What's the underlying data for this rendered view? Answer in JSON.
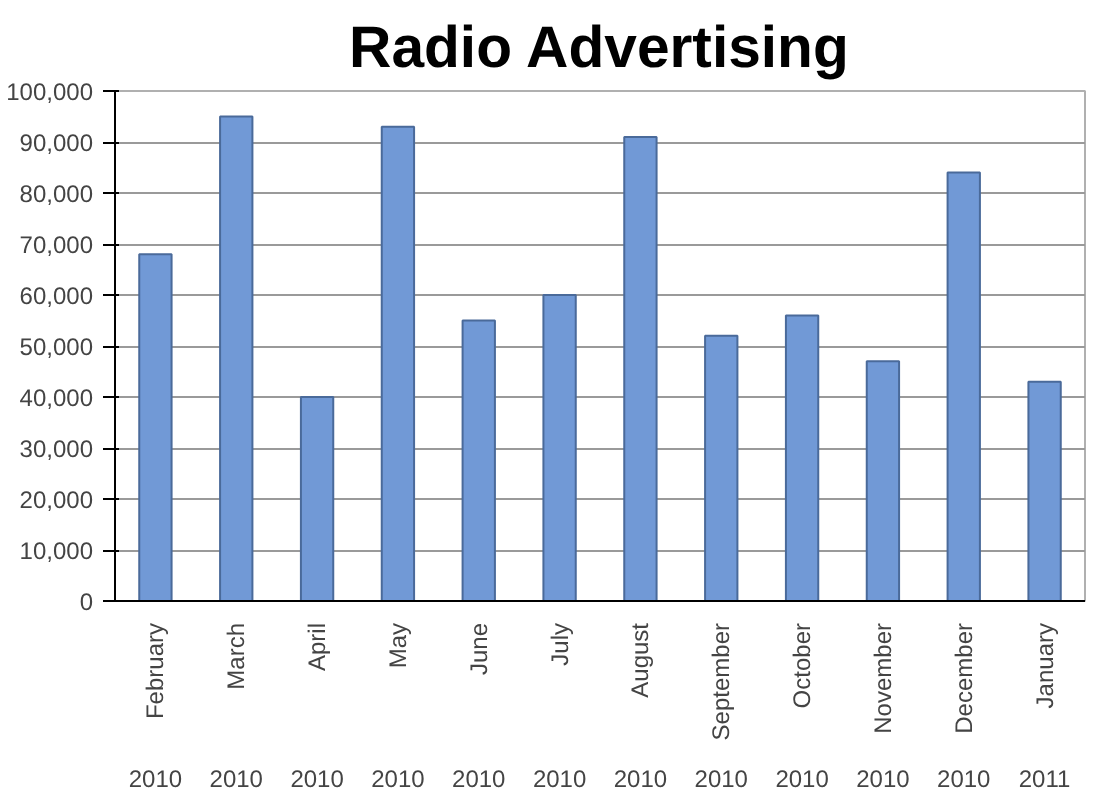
{
  "chart_data": {
    "type": "bar",
    "title": "Radio Advertising",
    "categories": [
      "February",
      "March",
      "April",
      "May",
      "June",
      "July",
      "August",
      "September",
      "October",
      "November",
      "December",
      "January"
    ],
    "values": [
      68000,
      95000,
      40000,
      93000,
      55000,
      60000,
      91000,
      52000,
      56000,
      47000,
      84000,
      43000
    ],
    "color": "#7199d6",
    "annotations": [
      "2010",
      "2010",
      "2010",
      "2010",
      "2010",
      "2010",
      "2010",
      "2010",
      "2010",
      "2010",
      "2010",
      "2011"
    ],
    "ylim": [
      0,
      100000
    ],
    "yticks": [
      {
        "value": 0,
        "label": "0"
      },
      {
        "value": 10000,
        "label": "10,000"
      },
      {
        "value": 20000,
        "label": "20,000"
      },
      {
        "value": 30000,
        "label": "30,000"
      },
      {
        "value": 40000,
        "label": "40,000"
      },
      {
        "value": 50000,
        "label": "50,000"
      },
      {
        "value": 60000,
        "label": "60,000"
      },
      {
        "value": 70000,
        "label": "70,000"
      },
      {
        "value": 80000,
        "label": "80,000"
      },
      {
        "value": 90000,
        "label": "90,000"
      },
      {
        "value": 100000,
        "label": "100,000"
      }
    ],
    "grid": "y"
  }
}
